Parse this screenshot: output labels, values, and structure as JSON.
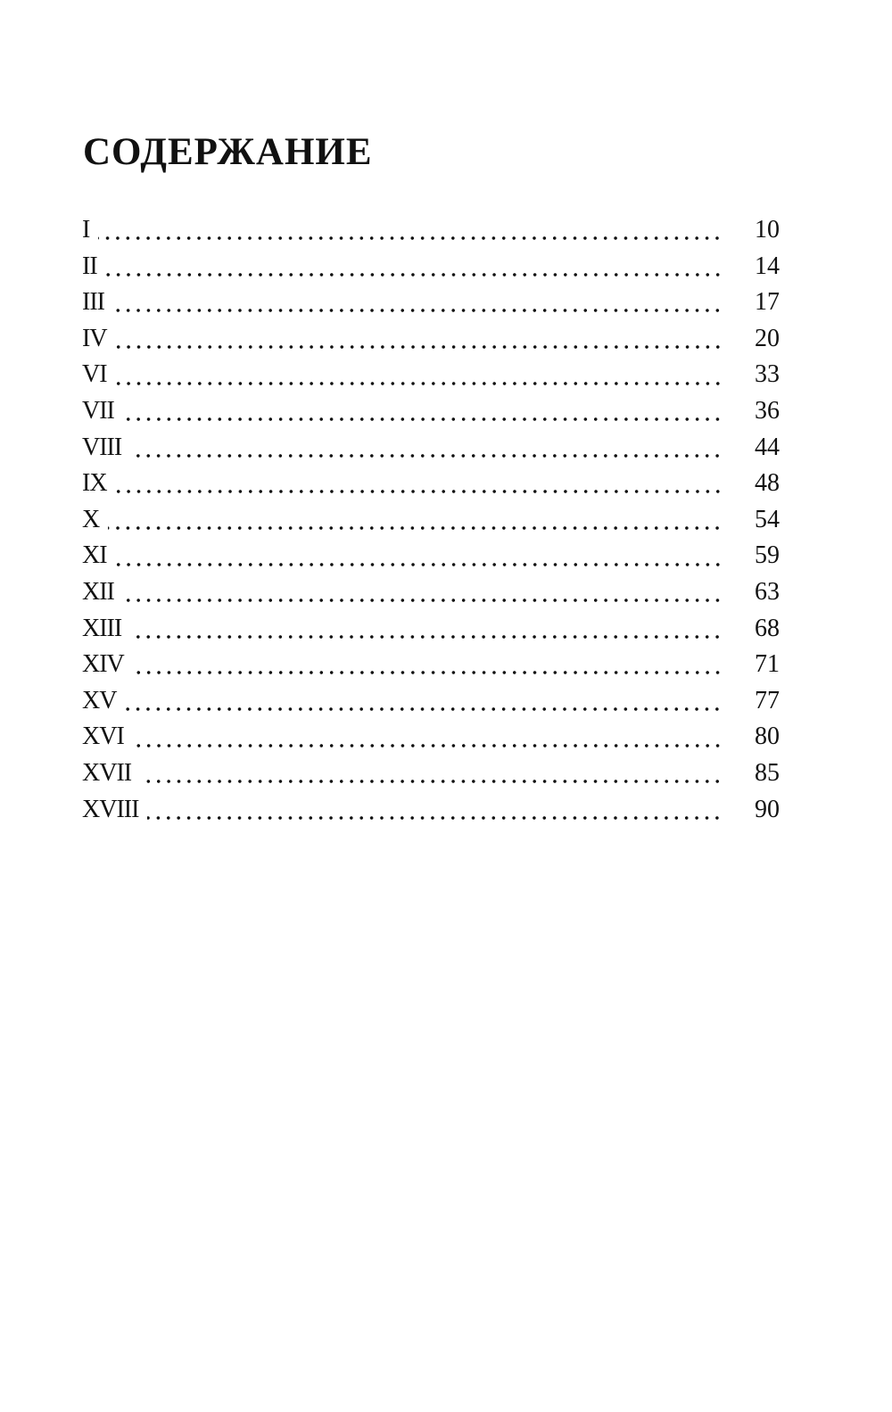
{
  "title": "СОДЕРЖАНИЕ",
  "entries": [
    {
      "label": "I",
      "page": "10"
    },
    {
      "label": "II",
      "page": "14"
    },
    {
      "label": "III",
      "page": "17"
    },
    {
      "label": "IV",
      "page": "20"
    },
    {
      "label": "VI",
      "page": "33"
    },
    {
      "label": "VII",
      "page": "36"
    },
    {
      "label": "VIII",
      "page": "44"
    },
    {
      "label": "IX",
      "page": "48"
    },
    {
      "label": "X",
      "page": "54"
    },
    {
      "label": "XI",
      "page": "59"
    },
    {
      "label": "XII",
      "page": "63"
    },
    {
      "label": "XIII",
      "page": "68"
    },
    {
      "label": "XIV",
      "page": "71"
    },
    {
      "label": "XV",
      "page": "77"
    },
    {
      "label": "XVI",
      "page": "80"
    },
    {
      "label": "XVII",
      "page": "85"
    },
    {
      "label": "XVIII",
      "page": "90"
    }
  ]
}
